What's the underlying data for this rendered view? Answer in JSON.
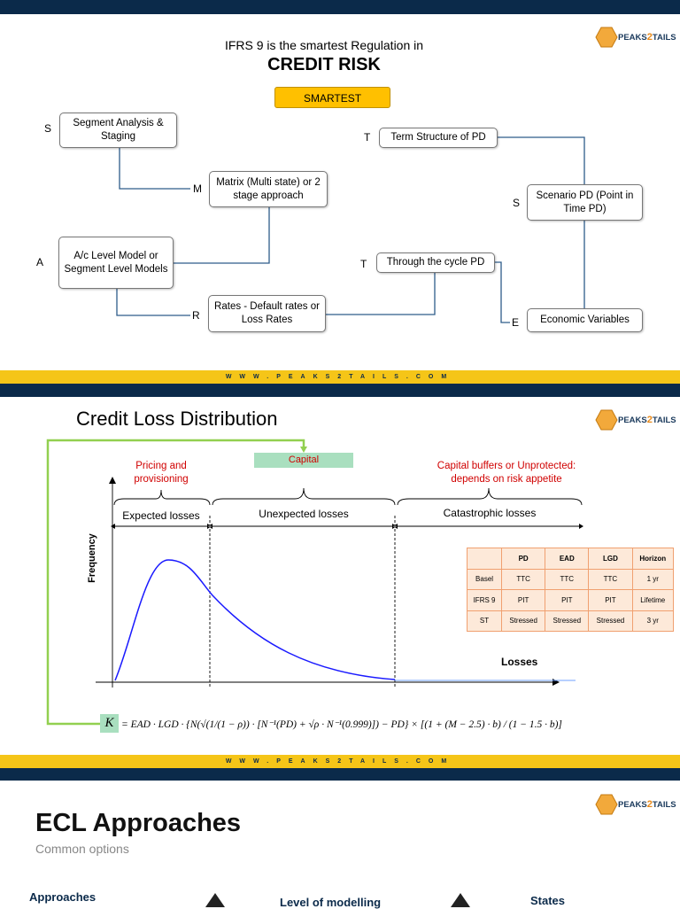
{
  "logo": {
    "left": "PEAKS",
    "mid": "2",
    "right": "TAILS"
  },
  "footer": "WWW.PEAKS2TAILS.COM",
  "slide1": {
    "subtitle": "IFRS 9 is the smartest Regulation in",
    "title": "CREDIT RISK",
    "button": "SMARTEST",
    "nodes": [
      {
        "letter": "S",
        "label": "Segment Analysis & Staging"
      },
      {
        "letter": "M",
        "label": "Matrix (Multi state) or 2 stage approach"
      },
      {
        "letter": "A",
        "label": "A/c Level Model or Segment Level Models"
      },
      {
        "letter": "R",
        "label": "Rates - Default rates or Loss Rates"
      },
      {
        "letter": "T",
        "label": "Term Structure of PD"
      },
      {
        "letter": "S",
        "label": "Scenario PD (Point in Time PD)"
      },
      {
        "letter": "T",
        "label": "Through the cycle PD"
      },
      {
        "letter": "E",
        "label": "Economic Variables"
      }
    ]
  },
  "slide2": {
    "title": "Credit Loss Distribution",
    "capital": "Capital",
    "pricing": "Pricing and provisioning",
    "buffers": "Capital buffers or Unprotected: depends on risk appetite",
    "regions": [
      "Expected losses",
      "Unexpected losses",
      "Catastrophic losses"
    ],
    "y_label": "Frequency",
    "x_label": "Losses",
    "table": {
      "header": [
        "PD",
        "EAD",
        "LGD",
        "Horizon"
      ],
      "rows": [
        [
          "Basel",
          "TTC",
          "TTC",
          "TTC",
          "1 yr"
        ],
        [
          "IFRS 9",
          "PIT",
          "PIT",
          "PIT",
          "Lifetime"
        ],
        [
          "ST",
          "Stressed",
          "Stressed",
          "Stressed",
          "3 yr"
        ]
      ]
    },
    "formula": {
      "lhs": "K",
      "rhs": "= EAD · LGD · {N(√(1/(1 − ρ)) · [N⁻¹(PD) + √ρ · N⁻¹(0.999)]) − PD} × [(1 + (M − 2.5) · b) / (1 − 1.5 · b)]"
    }
  },
  "slide3": {
    "title": "ECL Approaches",
    "subtitle": "Common options",
    "columns": [
      "Approaches",
      "Level of modelling",
      "States"
    ]
  }
}
